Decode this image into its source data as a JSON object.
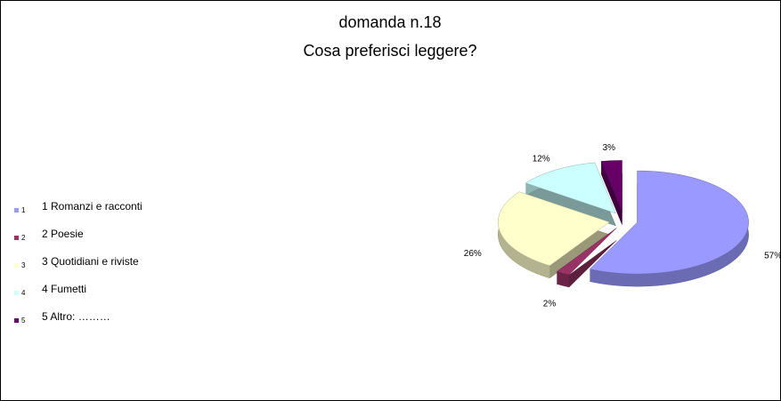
{
  "chart_data": {
    "type": "pie",
    "title": "domanda n.18",
    "subtitle": "Cosa preferisci leggere?",
    "legend_keys": [
      "1",
      "2",
      "3",
      "4",
      "5"
    ],
    "categories": [
      "1 Romanzi e racconti",
      "2 Poesie",
      "3 Quotidiani e riviste",
      "4 Fumetti",
      "5 Altro: ………"
    ],
    "values": [
      57,
      2,
      26,
      12,
      3
    ],
    "value_labels": [
      "57%",
      "2%",
      "26%",
      "12%",
      "3%"
    ],
    "colors": [
      "#9999ff",
      "#993366",
      "#ffffcc",
      "#ccffff",
      "#660066"
    ],
    "legend": "left",
    "exploded": true
  }
}
